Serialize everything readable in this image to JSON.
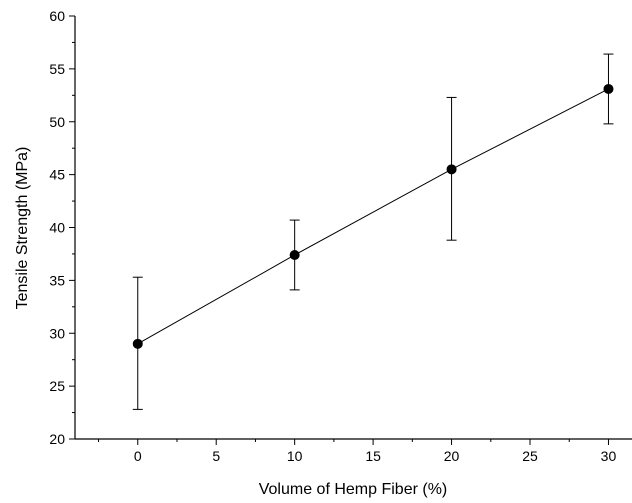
{
  "chart_data": {
    "type": "line",
    "title": "",
    "xlabel": "Volume of Hemp Fiber (%)",
    "ylabel": "Tensile Strength (MPa)",
    "xlim": [
      -4,
      31.5
    ],
    "ylim": [
      20,
      60
    ],
    "xticks": [
      0,
      5,
      10,
      15,
      20,
      25,
      30
    ],
    "yticks": [
      20,
      25,
      30,
      35,
      40,
      45,
      50,
      55,
      60
    ],
    "grid": false,
    "legend": "none",
    "series": [
      {
        "x": [
          0,
          10,
          20,
          30
        ],
        "y": [
          29.0,
          37.4,
          45.5,
          53.1
        ],
        "error_low": [
          22.8,
          34.1,
          38.8,
          49.8
        ],
        "error_high": [
          35.3,
          40.7,
          52.3,
          56.4
        ],
        "color": "#000000",
        "marker": "circle"
      }
    ]
  }
}
